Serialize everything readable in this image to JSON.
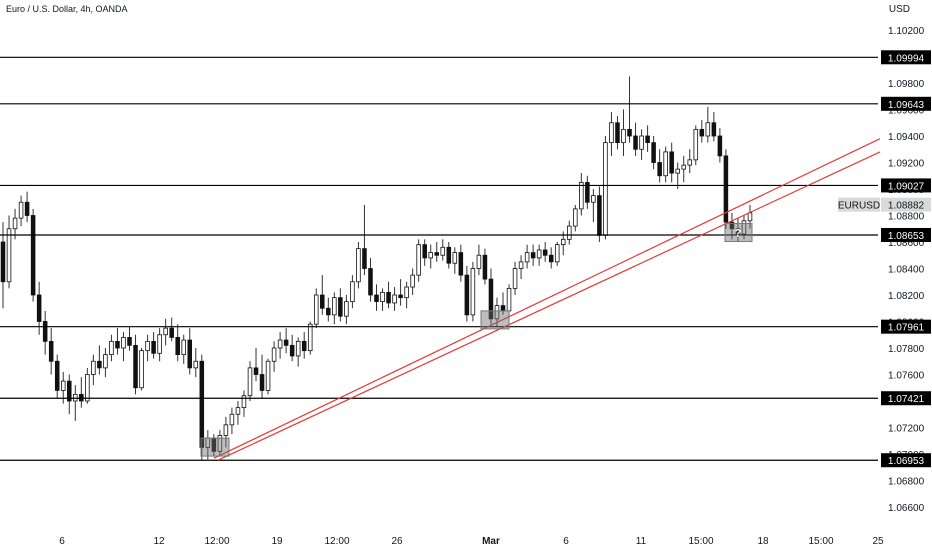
{
  "header": {
    "title": "Euro / U.S. Dollar, 4h, OANDA",
    "currency": "USD"
  },
  "chart_data": {
    "type": "candlestick",
    "title": "Euro / U.S. Dollar, 4h, OANDA",
    "y_unit": "USD",
    "ylim": [
      1.0648,
      1.1048
    ],
    "y_ticks": [
      1.066,
      1.068,
      1.07,
      1.072,
      1.074,
      1.076,
      1.078,
      1.08,
      1.082,
      1.084,
      1.086,
      1.088,
      1.09,
      1.092,
      1.094,
      1.096,
      1.098,
      1.1,
      1.102
    ],
    "y_tick_labels": [
      "1.06600",
      "1.06800",
      "1.07000",
      "1.07200",
      "1.07400",
      "1.07600",
      "1.07800",
      "1.08000",
      "1.08200",
      "1.08400",
      "1.08600",
      "1.08800",
      "1.09000",
      "1.09200",
      "1.09400",
      "1.09600",
      "1.09800",
      "1.10000",
      "1.10200"
    ],
    "x_ticks": [
      "6",
      "12",
      "12:00",
      "19",
      "12:00",
      "26",
      "Mar",
      "6",
      "11",
      "15:00",
      "18",
      "15:00",
      "25"
    ],
    "grid": false,
    "levels": [
      {
        "value": 1.09994,
        "label": "1.09994"
      },
      {
        "value": 1.09643,
        "label": "1.09643"
      },
      {
        "value": 1.09027,
        "label": "1.09027"
      },
      {
        "value": 1.08653,
        "label": "1.08653"
      },
      {
        "value": 1.07961,
        "label": "1.07961"
      },
      {
        "value": 1.07421,
        "label": "1.07421"
      },
      {
        "value": 1.06953,
        "label": "1.06953"
      }
    ],
    "current_price": {
      "symbol": "EURUSD",
      "value": 1.08882,
      "label": "1.08882"
    },
    "trend_channel": {
      "color": "#e53935",
      "line1": [
        [
          1.06953,
          0
        ],
        [
          1.0935,
          0
        ]
      ],
      "start_price": 1.06953,
      "end_price_upper": 1.0938,
      "end_price_lower": 1.0928
    },
    "annotation": {
      "text": "?"
    },
    "ohlc": [
      [
        1.086,
        1.0875,
        1.081,
        1.083
      ],
      [
        1.083,
        1.088,
        1.0825,
        1.087
      ],
      [
        1.087,
        1.0885,
        1.0862,
        1.0878
      ],
      [
        1.0878,
        1.0895,
        1.0872,
        1.089
      ],
      [
        1.089,
        1.0898,
        1.0875,
        1.088
      ],
      [
        1.088,
        1.0885,
        1.0815,
        1.082
      ],
      [
        1.082,
        1.083,
        1.079,
        1.08
      ],
      [
        1.08,
        1.0808,
        1.0775,
        1.0785
      ],
      [
        1.0785,
        1.0795,
        1.076,
        1.077
      ],
      [
        1.077,
        1.0775,
        1.0742,
        1.0748
      ],
      [
        1.0748,
        1.0762,
        1.0738,
        1.0755
      ],
      [
        1.0755,
        1.076,
        1.073,
        1.074
      ],
      [
        1.074,
        1.0752,
        1.0725,
        1.0745
      ],
      [
        1.0745,
        1.0758,
        1.0735,
        1.074
      ],
      [
        1.074,
        1.0765,
        1.0738,
        1.076
      ],
      [
        1.076,
        1.0775,
        1.0752,
        1.077
      ],
      [
        1.077,
        1.0782,
        1.076,
        1.0765
      ],
      [
        1.0765,
        1.078,
        1.0758,
        1.0775
      ],
      [
        1.0775,
        1.079,
        1.077,
        1.0785
      ],
      [
        1.0785,
        1.0795,
        1.0775,
        1.078
      ],
      [
        1.078,
        1.0792,
        1.077,
        1.0788
      ],
      [
        1.0788,
        1.0796,
        1.0778,
        1.0782
      ],
      [
        1.0782,
        1.079,
        1.0745,
        1.075
      ],
      [
        1.075,
        1.078,
        1.0748,
        1.0778
      ],
      [
        1.0778,
        1.079,
        1.077,
        1.0785
      ],
      [
        1.0785,
        1.0792,
        1.0772,
        1.0776
      ],
      [
        1.0776,
        1.0795,
        1.077,
        1.079
      ],
      [
        1.079,
        1.0802,
        1.0782,
        1.0795
      ],
      [
        1.0795,
        1.0803,
        1.0785,
        1.0788
      ],
      [
        1.0788,
        1.0798,
        1.077,
        1.0775
      ],
      [
        1.0775,
        1.079,
        1.0768,
        1.0786
      ],
      [
        1.0786,
        1.0795,
        1.076,
        1.0765
      ],
      [
        1.0765,
        1.078,
        1.0758,
        1.077
      ],
      [
        1.077,
        1.0775,
        1.0695,
        1.0705
      ],
      [
        1.0705,
        1.0718,
        1.0696,
        1.0712
      ],
      [
        1.0712,
        1.0715,
        1.0698,
        1.0702
      ],
      [
        1.0702,
        1.0718,
        1.0699,
        1.0714
      ],
      [
        1.0714,
        1.0728,
        1.0705,
        1.0722
      ],
      [
        1.0722,
        1.0735,
        1.0715,
        1.073
      ],
      [
        1.073,
        1.074,
        1.0722,
        1.0735
      ],
      [
        1.0735,
        1.0748,
        1.0728,
        1.0744
      ],
      [
        1.0744,
        1.077,
        1.074,
        1.0765
      ],
      [
        1.0765,
        1.078,
        1.0755,
        1.076
      ],
      [
        1.076,
        1.0775,
        1.0742,
        1.0748
      ],
      [
        1.0748,
        1.0772,
        1.0745,
        1.077
      ],
      [
        1.077,
        1.0785,
        1.0762,
        1.078
      ],
      [
        1.078,
        1.0792,
        1.0772,
        1.0786
      ],
      [
        1.0786,
        1.0795,
        1.0776,
        1.0782
      ],
      [
        1.0782,
        1.079,
        1.077,
        1.0774
      ],
      [
        1.0774,
        1.0788,
        1.0766,
        1.0785
      ],
      [
        1.0785,
        1.0792,
        1.0772,
        1.0778
      ],
      [
        1.0778,
        1.08,
        1.0775,
        1.0798
      ],
      [
        1.0798,
        1.0825,
        1.0795,
        1.082
      ],
      [
        1.082,
        1.0835,
        1.0805,
        1.081
      ],
      [
        1.081,
        1.0818,
        1.08,
        1.0805
      ],
      [
        1.0805,
        1.0822,
        1.0798,
        1.0818
      ],
      [
        1.0818,
        1.0825,
        1.08,
        1.0804
      ],
      [
        1.0804,
        1.082,
        1.0798,
        1.0815
      ],
      [
        1.0815,
        1.0835,
        1.081,
        1.083
      ],
      [
        1.083,
        1.086,
        1.0825,
        1.0855
      ],
      [
        1.0855,
        1.0888,
        1.0835,
        1.084
      ],
      [
        1.084,
        1.0848,
        1.0815,
        1.082
      ],
      [
        1.082,
        1.0828,
        1.0808,
        1.0815
      ],
      [
        1.0815,
        1.0825,
        1.0808,
        1.0822
      ],
      [
        1.0822,
        1.083,
        1.081,
        1.0814
      ],
      [
        1.0814,
        1.0826,
        1.0808,
        1.082
      ],
      [
        1.082,
        1.0832,
        1.0812,
        1.0818
      ],
      [
        1.0818,
        1.083,
        1.081,
        1.0826
      ],
      [
        1.0826,
        1.084,
        1.082,
        1.0835
      ],
      [
        1.0835,
        1.0862,
        1.083,
        1.0858
      ],
      [
        1.0858,
        1.0862,
        1.0842,
        1.0848
      ],
      [
        1.0848,
        1.0858,
        1.084,
        1.0852
      ],
      [
        1.0852,
        1.086,
        1.0845,
        1.085
      ],
      [
        1.085,
        1.0862,
        1.0846,
        1.0856
      ],
      [
        1.0856,
        1.086,
        1.084,
        1.0844
      ],
      [
        1.0844,
        1.0856,
        1.0836,
        1.0852
      ],
      [
        1.0852,
        1.0858,
        1.083,
        1.0835
      ],
      [
        1.0835,
        1.0842,
        1.08,
        1.0805
      ],
      [
        1.0805,
        1.0845,
        1.08,
        1.084
      ],
      [
        1.084,
        1.0858,
        1.0835,
        1.085
      ],
      [
        1.085,
        1.0855,
        1.0828,
        1.0832
      ],
      [
        1.0832,
        1.084,
        1.0798,
        1.0802
      ],
      [
        1.0802,
        1.0818,
        1.0796,
        1.0812
      ],
      [
        1.0812,
        1.0822,
        1.0805,
        1.0808
      ],
      [
        1.0808,
        1.0828,
        1.0802,
        1.0825
      ],
      [
        1.0825,
        1.0845,
        1.082,
        1.084
      ],
      [
        1.084,
        1.085,
        1.0832,
        1.0845
      ],
      [
        1.0845,
        1.0858,
        1.084,
        1.0852
      ],
      [
        1.0852,
        1.0858,
        1.0842,
        1.0848
      ],
      [
        1.0848,
        1.0858,
        1.0842,
        1.0854
      ],
      [
        1.0854,
        1.086,
        1.0845,
        1.085
      ],
      [
        1.085,
        1.0856,
        1.084,
        1.0845
      ],
      [
        1.0845,
        1.086,
        1.0842,
        1.0858
      ],
      [
        1.0858,
        1.0868,
        1.085,
        1.0862
      ],
      [
        1.0862,
        1.0876,
        1.0858,
        1.0872
      ],
      [
        1.0872,
        1.0888,
        1.0868,
        1.0885
      ],
      [
        1.0885,
        1.0912,
        1.088,
        1.0905
      ],
      [
        1.0905,
        1.091,
        1.0885,
        1.089
      ],
      [
        1.089,
        1.09,
        1.0875,
        1.0895
      ],
      [
        1.0895,
        1.0902,
        1.086,
        1.0865
      ],
      [
        1.0865,
        1.094,
        1.0862,
        1.0935
      ],
      [
        1.0935,
        1.0958,
        1.0925,
        1.095
      ],
      [
        1.095,
        1.0955,
        1.093,
        1.0935
      ],
      [
        1.0935,
        1.096,
        1.0925,
        1.0945
      ],
      [
        1.0945,
        1.0985,
        1.0935,
        1.094
      ],
      [
        1.094,
        1.095,
        1.0925,
        1.093
      ],
      [
        1.093,
        1.0945,
        1.0922,
        1.094
      ],
      [
        1.094,
        1.0948,
        1.0928,
        1.0935
      ],
      [
        1.0935,
        1.094,
        1.0915,
        1.092
      ],
      [
        1.092,
        1.093,
        1.0905,
        1.091
      ],
      [
        1.091,
        1.0932,
        1.0905,
        1.0928
      ],
      [
        1.0928,
        1.0935,
        1.0905,
        1.0912
      ],
      [
        1.0912,
        1.092,
        1.09,
        1.0915
      ],
      [
        1.0915,
        1.0925,
        1.0905,
        1.0918
      ],
      [
        1.0918,
        1.093,
        1.0912,
        1.0922
      ],
      [
        1.0922,
        1.0948,
        1.0918,
        1.0945
      ],
      [
        1.0945,
        1.0952,
        1.0935,
        1.094
      ],
      [
        1.094,
        1.0962,
        1.0935,
        1.095
      ],
      [
        1.095,
        1.0958,
        1.0936,
        1.094
      ],
      [
        1.094,
        1.0946,
        1.092,
        1.0925
      ],
      [
        1.0925,
        1.093,
        1.087,
        1.0875
      ],
      [
        1.0875,
        1.0882,
        1.0862,
        1.087
      ],
      [
        1.087,
        1.0878,
        1.086,
        1.0866
      ],
      [
        1.0866,
        1.088,
        1.0862,
        1.0876
      ],
      [
        1.0876,
        1.0888,
        1.087,
        1.0882
      ]
    ]
  }
}
